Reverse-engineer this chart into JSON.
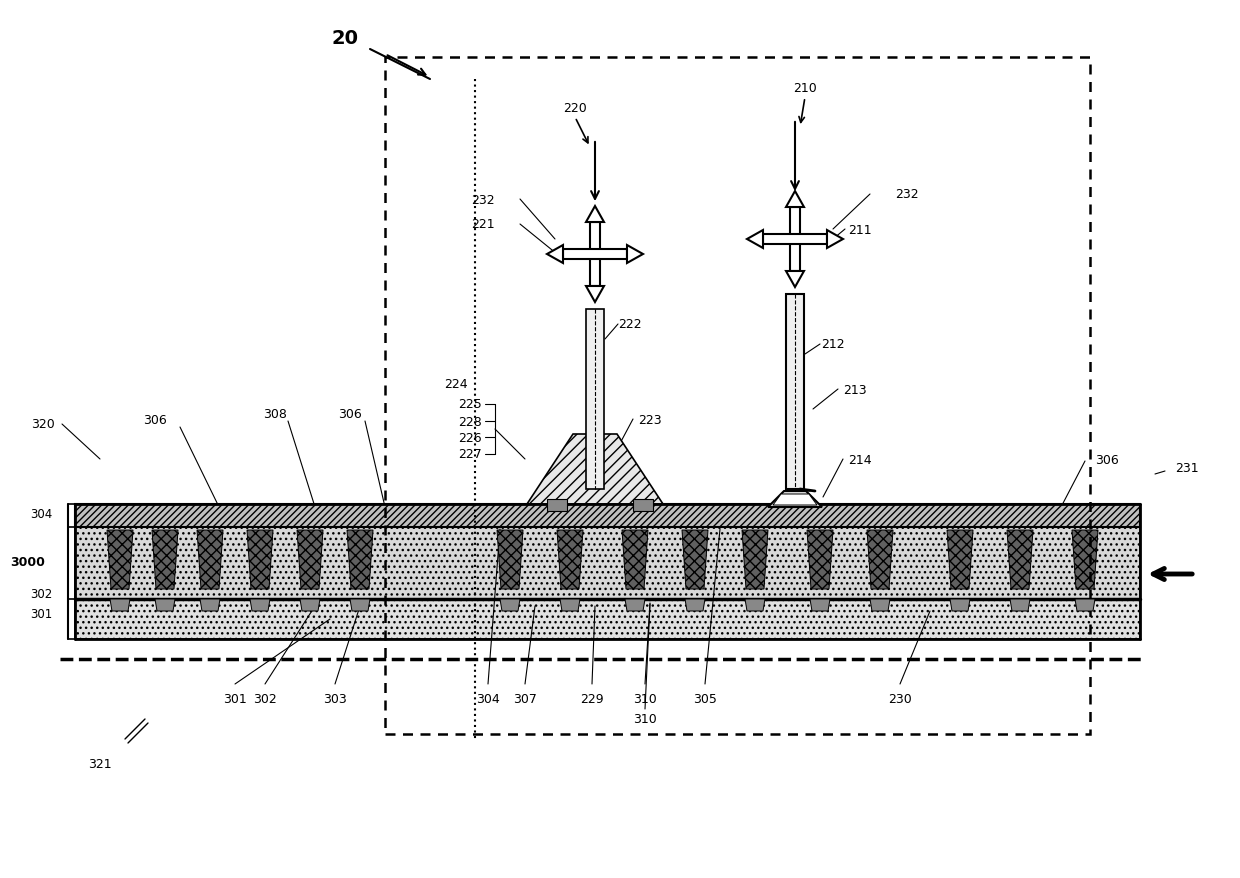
{
  "fig_width": 12.4,
  "fig_height": 8.79,
  "bg_color": "#ffffff",
  "line_color": "#000000"
}
